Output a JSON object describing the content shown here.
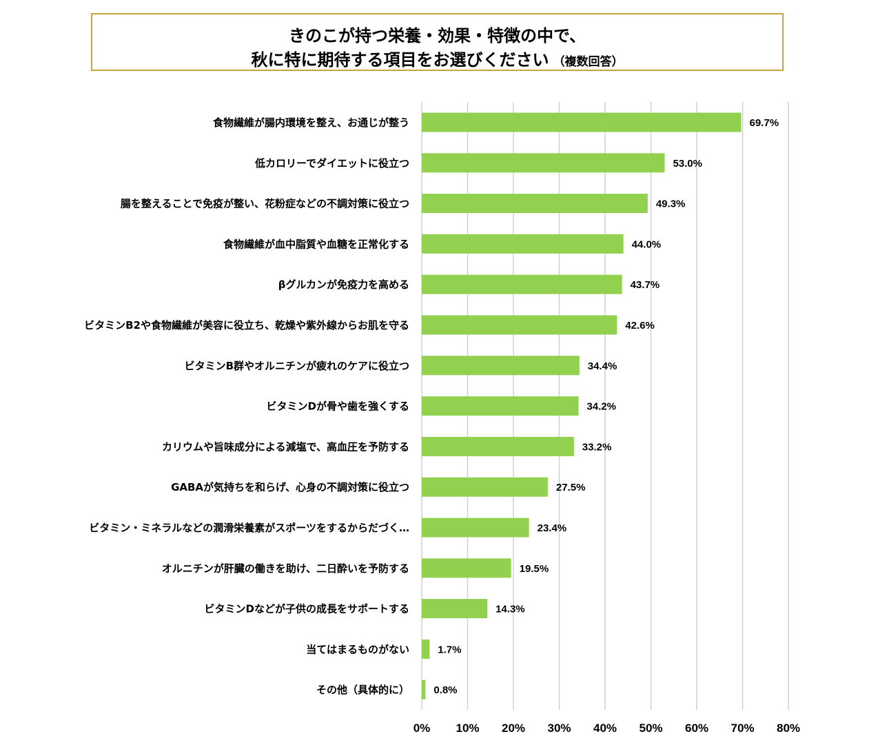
{
  "title": {
    "line1": "きのこが持つ栄養・効果・特徴の中で、",
    "line2": "秋に特に期待する項目をお選びください",
    "note": "（複数回答）"
  },
  "chart_data": {
    "type": "bar",
    "orientation": "horizontal",
    "bar_color": "#92d050",
    "grid_color": "#d0d0d0",
    "grid": true,
    "xlim": [
      0,
      80
    ],
    "ticks": [
      "0%",
      "10%",
      "20%",
      "30%",
      "40%",
      "50%",
      "60%",
      "70%",
      "80%"
    ],
    "categories": [
      "食物繊維が腸内環境を整え、お通じが整う",
      "低カロリーでダイエットに役立つ",
      "腸を整えることで免疫が整い、花粉症などの不調対策に役立つ",
      "食物繊維が血中脂質や血糖を正常化する",
      "βグルカンが免疫力を高める",
      "ビタミンB2や食物繊維が美容に役立ち、乾燥や紫外線からお肌を守る",
      "ビタミンB群やオルニチンが疲れのケアに役立つ",
      "ビタミンDが骨や歯を強くする",
      "カリウムや旨味成分による減塩で、高血圧を予防する",
      "GABAが気持ちを和らげ、心身の不調対策に役立つ",
      "ビタミン・ミネラルなどの潤滑栄養素がスポーツをするからだづく…",
      "オルニチンが肝臓の働きを助け、二日酔いを予防する",
      "ビタミンDなどが子供の成長をサポートする",
      "当てはまるものがない",
      "その他（具体的に）"
    ],
    "values": [
      69.7,
      53.0,
      49.3,
      44.0,
      43.7,
      42.6,
      34.4,
      34.2,
      33.2,
      27.5,
      23.4,
      19.5,
      14.3,
      1.7,
      0.8
    ],
    "value_labels": [
      "69.7%",
      "53.0%",
      "49.3%",
      "44.0%",
      "43.7%",
      "42.6%",
      "34.4%",
      "34.2%",
      "33.2%",
      "27.5%",
      "23.4%",
      "19.5%",
      "14.3%",
      "1.7%",
      "0.8%"
    ]
  }
}
